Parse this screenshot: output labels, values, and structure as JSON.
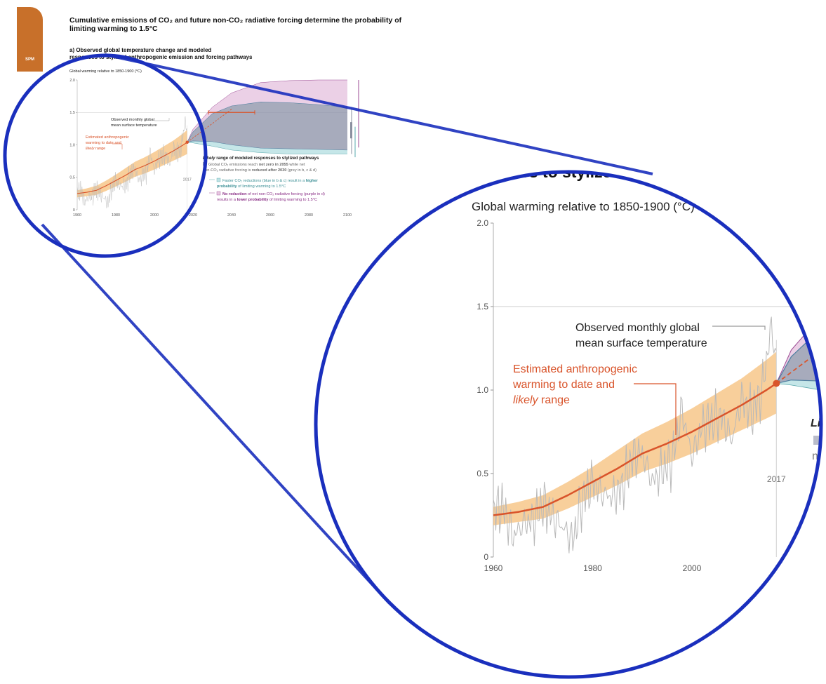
{
  "page": {
    "badge": "SPM",
    "title": "Cumulative emissions of CO₂ and future non-CO₂ radiative forcing determine the probability of limiting warming to 1.5°C",
    "subtitle_line1": "a) Observed global temperature change and modeled",
    "subtitle_line2": "responses to stylized anthropogenic emission and forcing pathways",
    "zoom_header_fragment": "ponses to stylized a"
  },
  "colors": {
    "tab": "#c8702a",
    "observed": "#b9b9b9",
    "anthropogenic": "#d9542b",
    "likely_band": "#f6bf7a",
    "grey_pathway": "#8a8fa6",
    "blue_pathway": "#bfe3e6",
    "purple_pathway": "#e8c8e2",
    "magnifier": "#1a2fbd"
  },
  "chart_data": {
    "type": "line",
    "ylabel": "Global warming relative to 1850-1900 (°C)",
    "xlim": [
      1960,
      2100
    ],
    "ylim": [
      0,
      2.0
    ],
    "x_ticks": [
      1960,
      1980,
      2000,
      2020,
      2040,
      2060,
      2080,
      2100
    ],
    "y_ticks": [
      0,
      0.5,
      1.0,
      1.5,
      2.0
    ],
    "y_tick_labels": [
      "0",
      "0.5",
      "1.0",
      "1.5",
      "2.0"
    ],
    "reference_line_y": 1.5,
    "marker_year": 2017,
    "marker_label": "2017",
    "anthropogenic_point": {
      "x": 2017,
      "y": 1.04
    },
    "series": [
      {
        "name": "Estimated anthropogenic warming to date and likely range",
        "x": [
          1960,
          1965,
          1970,
          1975,
          1980,
          1985,
          1990,
          1995,
          2000,
          2005,
          2010,
          2015,
          2017
        ],
        "values": [
          0.25,
          0.27,
          0.3,
          0.37,
          0.45,
          0.53,
          0.62,
          0.68,
          0.75,
          0.83,
          0.91,
          1.0,
          1.04
        ],
        "low": [
          0.19,
          0.21,
          0.23,
          0.29,
          0.36,
          0.43,
          0.51,
          0.56,
          0.62,
          0.69,
          0.76,
          0.83,
          0.86
        ],
        "high": [
          0.3,
          0.33,
          0.37,
          0.45,
          0.54,
          0.64,
          0.74,
          0.81,
          0.89,
          0.98,
          1.07,
          1.18,
          1.23
        ]
      },
      {
        "name": "Observed monthly global mean surface temperature",
        "x": [
          1960,
          1962,
          1964,
          1966,
          1968,
          1970,
          1972,
          1974,
          1976,
          1978,
          1980,
          1982,
          1984,
          1986,
          1988,
          1990,
          1992,
          1994,
          1996,
          1998,
          2000,
          2002,
          2004,
          2006,
          2008,
          2010,
          2012,
          2014,
          2016,
          2017
        ],
        "values": [
          0.28,
          0.3,
          0.12,
          0.2,
          0.22,
          0.32,
          0.24,
          0.18,
          0.1,
          0.35,
          0.45,
          0.38,
          0.36,
          0.42,
          0.6,
          0.62,
          0.45,
          0.52,
          0.58,
          0.88,
          0.6,
          0.78,
          0.82,
          0.84,
          0.7,
          0.95,
          0.86,
          0.98,
          1.38,
          1.18
        ]
      }
    ],
    "projection": {
      "x": [
        2017,
        2020,
        2030,
        2040,
        2055,
        2070,
        2085,
        2100
      ],
      "grey_low": [
        1.04,
        1.06,
        1.05,
        1.0,
        0.95,
        0.94,
        0.93,
        0.92
      ],
      "grey_high": [
        1.04,
        1.2,
        1.48,
        1.6,
        1.66,
        1.65,
        1.62,
        1.58
      ],
      "blue_low": [
        1.04,
        1.03,
        0.98,
        0.92,
        0.88,
        0.86,
        0.86,
        0.86
      ],
      "purple_high": [
        1.04,
        1.24,
        1.58,
        1.8,
        1.96,
        1.99,
        2.0,
        2.0
      ],
      "dashed_line": [
        {
          "x": 2017,
          "y": 1.04
        },
        {
          "x": 2040,
          "y": 1.55
        }
      ],
      "range_bar": {
        "x_start": 2028,
        "x_end": 2052,
        "y": 1.5
      }
    },
    "annotations": {
      "observed_line1": "Observed monthly global",
      "observed_line2": "mean surface temperature",
      "anthro_line1": "Estimated anthropogenic",
      "anthro_line2": "warming to date and",
      "anthro_line3_italic": "likely",
      "anthro_line3_rest": " range",
      "likely_title_italic": "Likely",
      "likely_title_rest": " range of modeled responses to stylized pathways",
      "grey_line1_a": "Global CO₂ emissions reach ",
      "grey_line1_b": "net zero in 2055",
      "grey_line1_c": " while net",
      "grey_line2_a": "non-CO₂ radiative forcing is ",
      "grey_line2_b": "reduced after 2030",
      "grey_line2_c": " (grey in b, c & d)",
      "blue_line1_a": "Faster CO₂ reductions (blue in b & c) result in a ",
      "blue_line1_b": "higher",
      "blue_line2_a": "probability",
      "blue_line2_b": " of limiting warming to 1.5°C",
      "purple_line1_a": "No reduction",
      "purple_line1_b": " of net non-CO₂ radiative forcing (purple in d)",
      "purple_line2_a": "results in a ",
      "purple_line2_b": "lower probability",
      "purple_line2_c": " of limiting warming to 1.5°C",
      "zoom_likely_fragment": "Li",
      "zoom_n_fragment": "n"
    }
  }
}
